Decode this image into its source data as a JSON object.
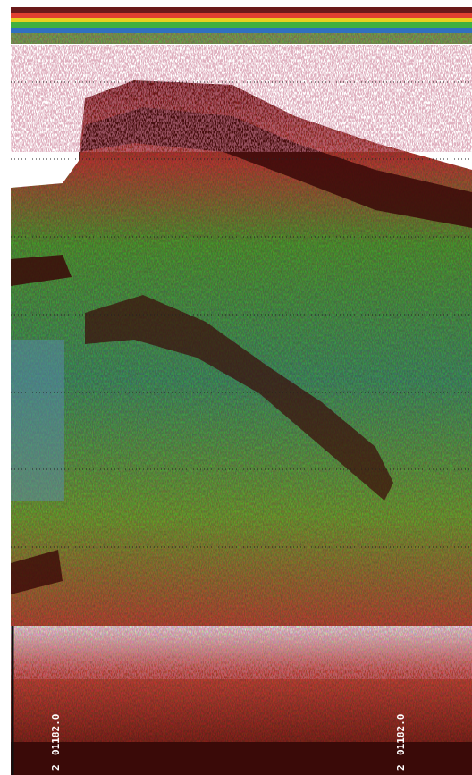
{
  "annotations": [
    {
      "text": "2"
    },
    {
      "text": "01182.0"
    },
    {
      "text": "2"
    },
    {
      "text": "01182.0"
    }
  ]
}
